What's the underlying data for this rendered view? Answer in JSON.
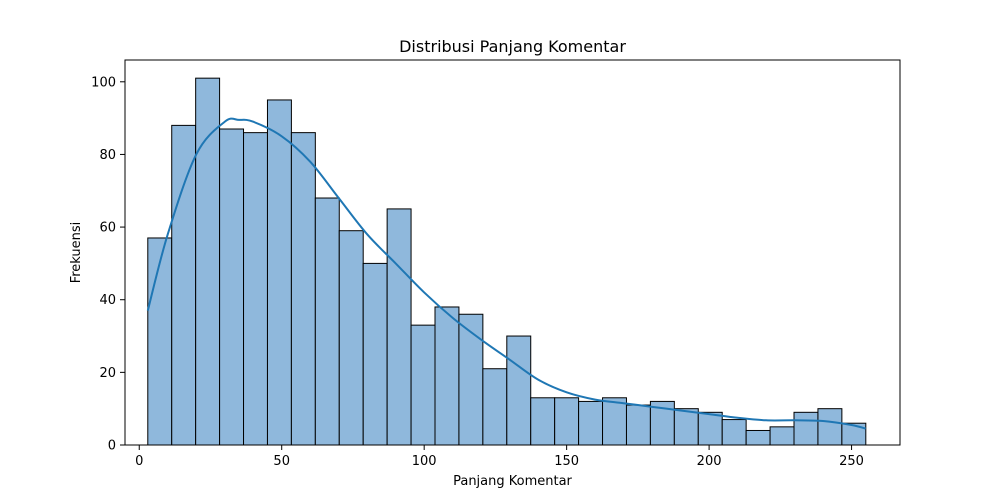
{
  "chart_data": {
    "type": "bar",
    "subtype": "histogram",
    "title": "Distribusi Panjang Komentar",
    "xlabel": "Panjang Komentar",
    "ylabel": "Frekuensi",
    "xlim": [
      -5,
      267
    ],
    "ylim": [
      0,
      106
    ],
    "xticks": [
      0,
      50,
      100,
      150,
      200,
      250
    ],
    "yticks": [
      0,
      20,
      40,
      60,
      80,
      100
    ],
    "bin_start": 3.0,
    "bin_width": 8.4,
    "values": [
      57,
      88,
      101,
      87,
      86,
      95,
      86,
      68,
      59,
      50,
      65,
      33,
      38,
      36,
      21,
      30,
      13,
      13,
      12,
      13,
      11,
      12,
      10,
      9,
      7,
      4,
      5,
      9,
      10,
      6
    ],
    "kde": {
      "x": [
        3,
        10,
        20,
        30,
        35,
        40,
        50,
        60,
        70,
        80,
        90,
        100,
        110,
        120,
        130,
        140,
        150,
        160,
        170,
        180,
        190,
        200,
        210,
        220,
        230,
        240,
        250,
        255
      ],
      "y": [
        37,
        58,
        80,
        89,
        89.5,
        89,
        85,
        78,
        68,
        58,
        50,
        42,
        35,
        29,
        23.5,
        18,
        14.5,
        12.5,
        11.5,
        10.5,
        9.5,
        8.5,
        7.5,
        6.8,
        6.8,
        6.6,
        5.5,
        4.5
      ]
    },
    "colors": {
      "bar_fill": "#8fb8dc",
      "bar_edge": "#000000",
      "kde_line": "#1f77b4"
    },
    "grid": false,
    "legend": "none"
  }
}
